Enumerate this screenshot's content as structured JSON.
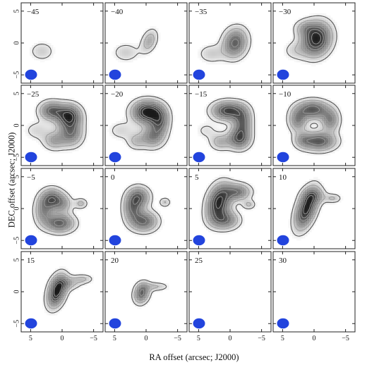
{
  "chart_data": {
    "type": "contour",
    "xlabel": "RA offset (arcsec; J2000)",
    "ylabel": "DEC offset (arcsec; J2000)",
    "xlim": [
      6.5,
      -6.5
    ],
    "ylim": [
      -6.3,
      6.3
    ],
    "x_ticks": [
      "5",
      "0",
      "−5"
    ],
    "y_ticks": [
      "−5",
      "0",
      "5"
    ],
    "beam_color": "#2244dd",
    "panels": [
      {
        "label": "−45"
      },
      {
        "label": "−40"
      },
      {
        "label": "−35"
      },
      {
        "label": "−30"
      },
      {
        "label": "−25"
      },
      {
        "label": "−20"
      },
      {
        "label": "−15"
      },
      {
        "label": "−10"
      },
      {
        "label": "−5"
      },
      {
        "label": "0"
      },
      {
        "label": "5"
      },
      {
        "label": "10"
      },
      {
        "label": "15"
      },
      {
        "label": "20"
      },
      {
        "label": "25"
      },
      {
        "label": "30"
      }
    ]
  }
}
